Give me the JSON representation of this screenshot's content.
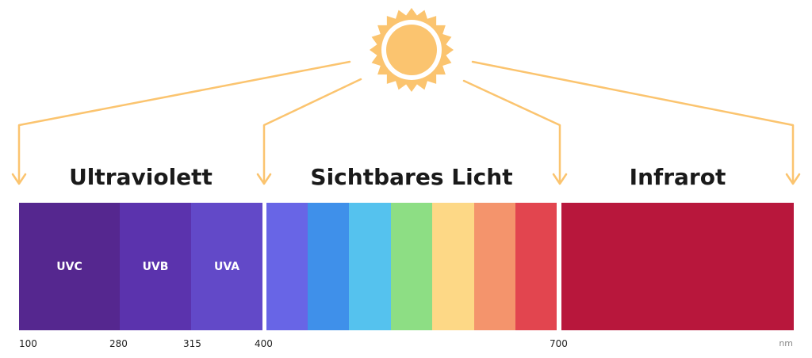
{
  "headings": {
    "ultraviolet": "Ultraviolett",
    "visible": "Sichtbares Licht",
    "infrared": "Infrarot"
  },
  "uv_bands": [
    {
      "label": "UVC",
      "color": "#55278f"
    },
    {
      "label": "UVB",
      "color": "#5b33ad"
    },
    {
      "label": "UVA",
      "color": "#6249c8"
    }
  ],
  "visible_bands": [
    {
      "name": "violet",
      "color": "#6865e6"
    },
    {
      "name": "blue",
      "color": "#3f90ea"
    },
    {
      "name": "light-blue",
      "color": "#55c2ee"
    },
    {
      "name": "green",
      "color": "#8dde84"
    },
    {
      "name": "yellow",
      "color": "#fdd886"
    },
    {
      "name": "orange",
      "color": "#f4946c"
    },
    {
      "name": "red",
      "color": "#e2454f"
    }
  ],
  "infrared_color": "#b8173c",
  "ticks": [
    "100",
    "280",
    "315",
    "400",
    "700"
  ],
  "unit": "nm",
  "colors": {
    "sun": "#fbc46f",
    "arrows": "#fbc46f"
  },
  "icons": {
    "sun": "sun-icon",
    "arrow": "arrow-down-icon"
  }
}
